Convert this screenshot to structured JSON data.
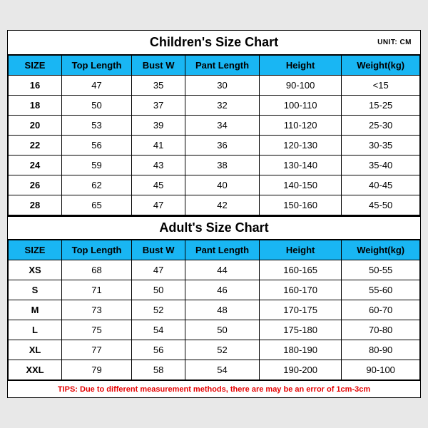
{
  "unit_label": "UNIT: CM",
  "children": {
    "title": "Children's Size Chart",
    "columns": [
      "SIZE",
      "Top Length",
      "Bust W",
      "Pant Length",
      "Height",
      "Weight(kg)"
    ],
    "rows": [
      [
        "16",
        "47",
        "35",
        "30",
        "90-100",
        "<15"
      ],
      [
        "18",
        "50",
        "37",
        "32",
        "100-110",
        "15-25"
      ],
      [
        "20",
        "53",
        "39",
        "34",
        "110-120",
        "25-30"
      ],
      [
        "22",
        "56",
        "41",
        "36",
        "120-130",
        "30-35"
      ],
      [
        "24",
        "59",
        "43",
        "38",
        "130-140",
        "35-40"
      ],
      [
        "26",
        "62",
        "45",
        "40",
        "140-150",
        "40-45"
      ],
      [
        "28",
        "65",
        "47",
        "42",
        "150-160",
        "45-50"
      ]
    ]
  },
  "adult": {
    "title": "Adult's Size Chart",
    "columns": [
      "SIZE",
      "Top Length",
      "Bust W",
      "Pant Length",
      "Height",
      "Weight(kg)"
    ],
    "rows": [
      [
        "XS",
        "68",
        "47",
        "44",
        "160-165",
        "50-55"
      ],
      [
        "S",
        "71",
        "50",
        "46",
        "160-170",
        "55-60"
      ],
      [
        "M",
        "73",
        "52",
        "48",
        "170-175",
        "60-70"
      ],
      [
        "L",
        "75",
        "54",
        "50",
        "175-180",
        "70-80"
      ],
      [
        "XL",
        "77",
        "56",
        "52",
        "180-190",
        "80-90"
      ],
      [
        "XXL",
        "79",
        "58",
        "54",
        "190-200",
        "90-100"
      ]
    ]
  },
  "tips": "TIPS: Due to different measurement methods, there are may be an error of 1cm-3cm",
  "styling": {
    "header_bg": "#19b6f3",
    "border_color": "#000000",
    "tips_color": "#e50000",
    "title_fontsize": 18,
    "cell_fontsize": 13,
    "col_widths_pct": [
      13,
      17,
      13,
      18,
      20,
      19
    ]
  }
}
